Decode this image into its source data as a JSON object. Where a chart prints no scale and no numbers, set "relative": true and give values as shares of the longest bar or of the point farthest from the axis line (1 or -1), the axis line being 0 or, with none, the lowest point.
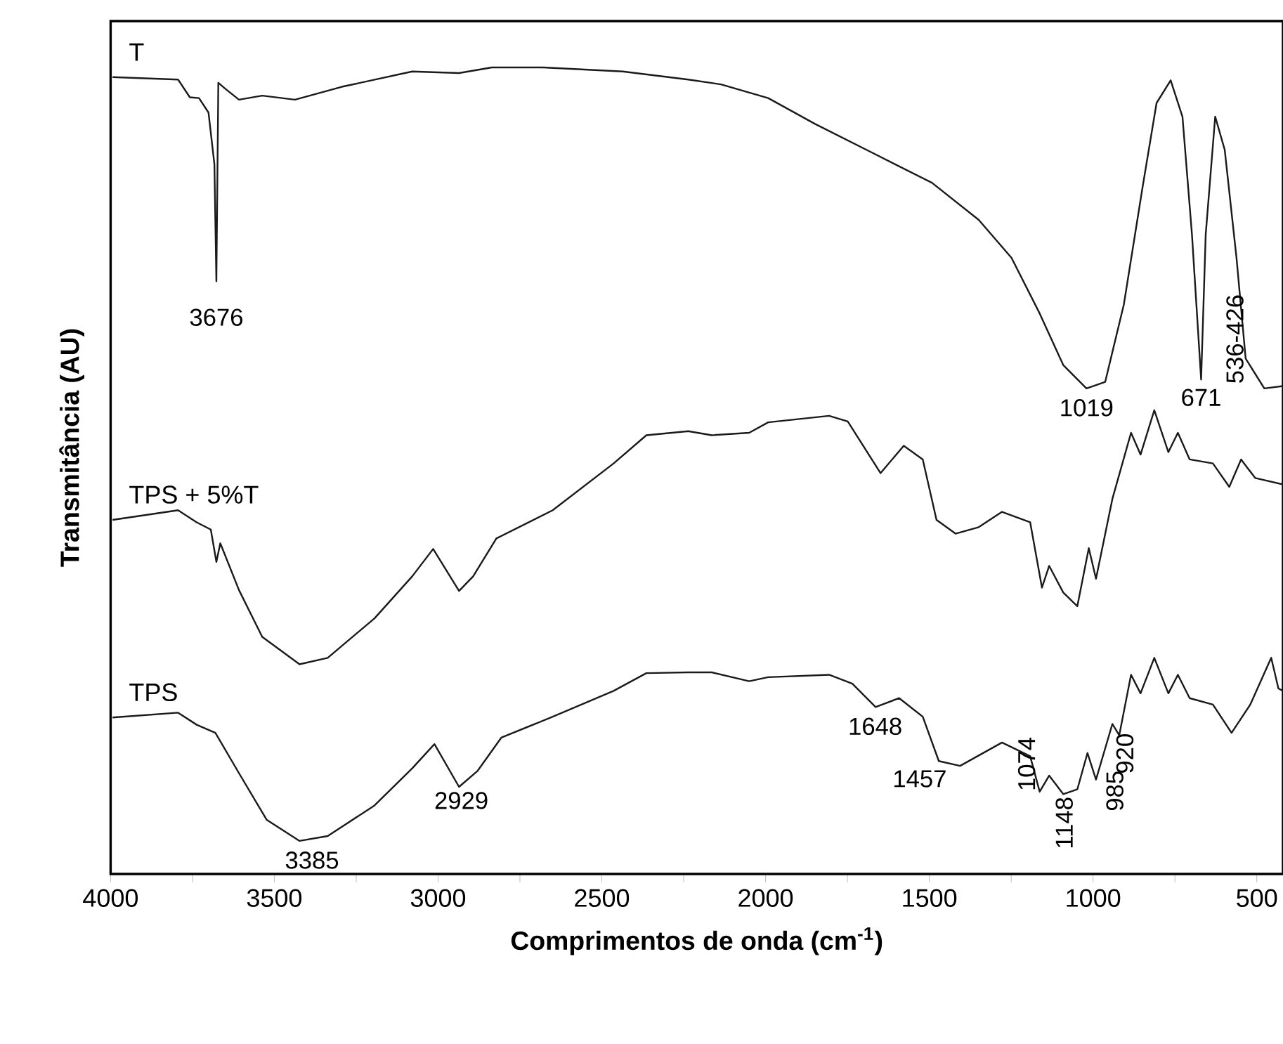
{
  "chart_data": {
    "type": "line",
    "xlabel": "Comprimentos de onda (cm$^{-1}$)",
    "ylabel": "Transmitância (AU)",
    "relative": true,
    "xlim": [
      4000,
      420
    ],
    "xticks": [
      4000,
      {
        "value": 3750,
        "label": null
      },
      3500,
      {
        "value": 3250,
        "label": null
      },
      3000,
      {
        "value": 2750,
        "label": null
      },
      2500,
      {
        "value": 2250,
        "label": null
      },
      2000,
      {
        "value": 1750,
        "label": null
      },
      1500,
      {
        "value": 1250,
        "label": null
      },
      1000,
      {
        "value": 750,
        "label": null
      },
      500
    ],
    "series": [
      {
        "name": "T",
        "color": "#1a1a1a",
        "x": [
          3994,
          3794,
          3758,
          3730,
          3701,
          3683,
          3677,
          3671,
          3651,
          3608,
          3537,
          3437,
          3294,
          3079,
          2936,
          2836,
          2679,
          2436,
          2236,
          2136,
          1992,
          1849,
          1678,
          1492,
          1349,
          1249,
          1163,
          1091,
          1020,
          963,
          906,
          849,
          806,
          763,
          727,
          698,
          670,
          656,
          627,
          598,
          562,
          534,
          477,
          420
        ],
        "values": [
          0.988,
          0.985,
          0.963,
          0.962,
          0.944,
          0.88,
          0.735,
          0.981,
          0.974,
          0.96,
          0.965,
          0.96,
          0.976,
          0.995,
          0.993,
          1,
          1,
          0.995,
          0.985,
          0.979,
          0.962,
          0.93,
          0.895,
          0.857,
          0.811,
          0.764,
          0.695,
          0.631,
          0.602,
          0.61,
          0.706,
          0.851,
          0.956,
          0.984,
          0.939,
          0.793,
          0.613,
          0.793,
          0.939,
          0.898,
          0.764,
          0.639,
          0.602,
          0.605
        ]
      },
      {
        "name": "TPS + 5%T",
        "color": "#1a1a1a",
        "x": [
          3994,
          3794,
          3737,
          3694,
          3677,
          3665,
          3608,
          3537,
          3423,
          3337,
          3194,
          3079,
          3015,
          2936,
          2893,
          2822,
          2650,
          2464,
          2364,
          2236,
          2164,
          2050,
          1992,
          1806,
          1749,
          1649,
          1578,
          1520,
          1478,
          1420,
          1349,
          1278,
          1192,
          1156,
          1134,
          1091,
          1048,
          1013,
          991,
          941,
          884,
          855,
          813,
          770,
          741,
          705,
          634,
          584,
          548,
          505,
          420
        ],
        "values": [
          0.439,
          0.451,
          0.436,
          0.427,
          0.387,
          0.41,
          0.352,
          0.294,
          0.26,
          0.268,
          0.317,
          0.369,
          0.403,
          0.351,
          0.369,
          0.416,
          0.451,
          0.509,
          0.544,
          0.549,
          0.544,
          0.547,
          0.56,
          0.568,
          0.561,
          0.497,
          0.531,
          0.514,
          0.439,
          0.422,
          0.43,
          0.449,
          0.436,
          0.355,
          0.382,
          0.349,
          0.332,
          0.404,
          0.366,
          0.465,
          0.547,
          0.52,
          0.575,
          0.523,
          0.547,
          0.514,
          0.509,
          0.48,
          0.514,
          0.491,
          0.483
        ]
      },
      {
        "name": "TPS",
        "color": "#1a1a1a",
        "x": [
          3994,
          3794,
          3737,
          3680,
          3608,
          3523,
          3423,
          3337,
          3194,
          3079,
          3011,
          2936,
          2879,
          2807,
          2650,
          2464,
          2364,
          2236,
          2164,
          2050,
          1992,
          1806,
          1735,
          1664,
          1592,
          1520,
          1471,
          1406,
          1278,
          1192,
          1163,
          1134,
          1091,
          1048,
          1017,
          991,
          941,
          920,
          884,
          855,
          813,
          770,
          741,
          705,
          634,
          577,
          520,
          456,
          434,
          420
        ],
        "values": [
          0.194,
          0.2,
          0.185,
          0.175,
          0.125,
          0.067,
          0.041,
          0.047,
          0.085,
          0.131,
          0.161,
          0.108,
          0.128,
          0.169,
          0.195,
          0.227,
          0.249,
          0.25,
          0.25,
          0.239,
          0.244,
          0.247,
          0.236,
          0.207,
          0.218,
          0.195,
          0.14,
          0.134,
          0.163,
          0.146,
          0.102,
          0.122,
          0.099,
          0.105,
          0.15,
          0.117,
          0.186,
          0.172,
          0.247,
          0.224,
          0.268,
          0.224,
          0.247,
          0.218,
          0.21,
          0.175,
          0.21,
          0.268,
          0.23,
          0.227
        ]
      }
    ],
    "annotations": [
      {
        "text": "3676",
        "x": 3677,
        "y": 0.735
      },
      {
        "text": "1019",
        "x": 1020,
        "y": 0.602
      },
      {
        "text": "671",
        "x": 670,
        "y": 0.613
      },
      {
        "text": "536-426",
        "x": 481,
        "y": 0.605
      },
      {
        "text": "3385",
        "x": 3385,
        "y": 0.041
      },
      {
        "text": "2929",
        "x": 2929,
        "y": 0.108
      },
      {
        "text": "1648",
        "x": 1648,
        "y": 0.207
      },
      {
        "text": "1457",
        "x": 1457,
        "y": 0.14
      },
      {
        "text": "1148",
        "x": 1148,
        "y": 0.102
      },
      {
        "text": "1074",
        "x": 1074,
        "y": 0.1
      },
      {
        "text": "985",
        "x": 985,
        "y": 0.117
      },
      {
        "text": "920",
        "x": 920,
        "y": 0.172
      }
    ]
  }
}
